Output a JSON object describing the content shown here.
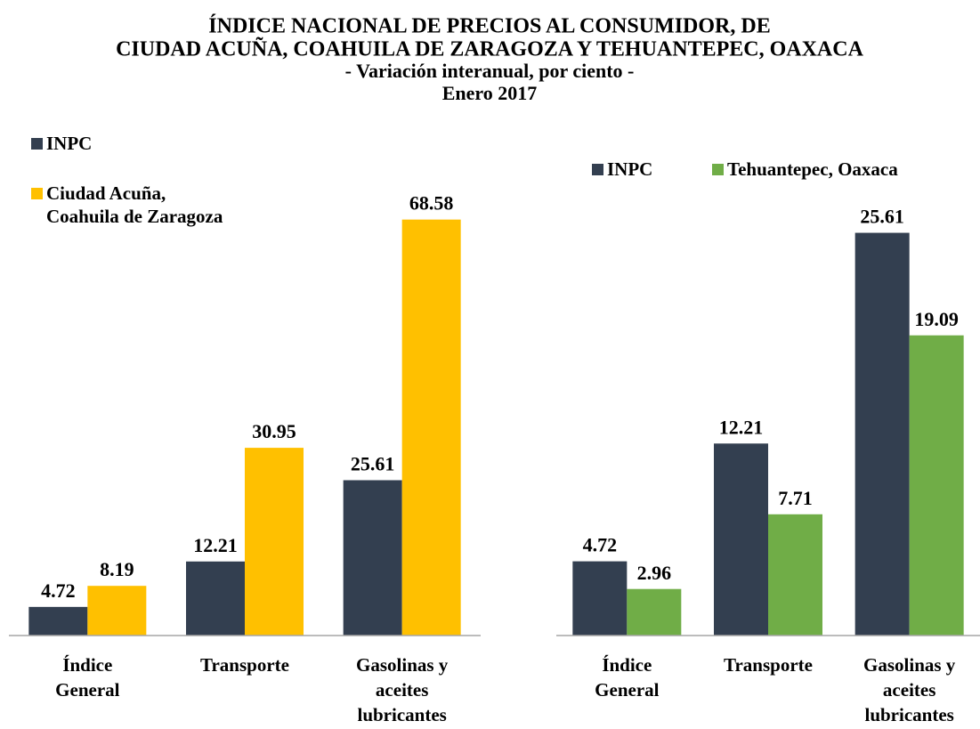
{
  "title": [
    "ÍNDICE NACIONAL DE PRECIOS AL CONSUMIDOR, DE",
    "CIUDAD ACUÑA, COAHUILA DE ZARAGOZA Y TEHUANTEPEC, OAXACA",
    "- Variación interanual, por ciento -",
    "Enero 2017"
  ],
  "chart_data": [
    {
      "type": "bar",
      "categories": [
        [
          "Índice",
          "General"
        ],
        [
          "Transporte"
        ],
        [
          "Gasolinas y",
          "aceites",
          "lubricantes"
        ]
      ],
      "series": [
        {
          "name": "INPC",
          "color": "#333f50",
          "values": [
            4.72,
            12.21,
            25.61
          ]
        },
        {
          "name": "Ciudad Acuña, Coahuila de Zaragoza",
          "color": "#ffc000",
          "values": [
            8.19,
            30.95,
            68.58
          ]
        }
      ],
      "ylim": [
        0,
        70
      ]
    },
    {
      "type": "bar",
      "categories": [
        [
          "Índice",
          "General"
        ],
        [
          "Transporte"
        ],
        [
          "Gasolinas y",
          "aceites",
          "lubricantes"
        ]
      ],
      "series": [
        {
          "name": "INPC",
          "color": "#333f50",
          "values": [
            4.72,
            12.21,
            25.61
          ]
        },
        {
          "name": "Tehuantepec, Oaxaca",
          "color": "#70ad47",
          "values": [
            2.96,
            7.71,
            19.09
          ]
        }
      ],
      "ylim": [
        0,
        27
      ]
    }
  ]
}
